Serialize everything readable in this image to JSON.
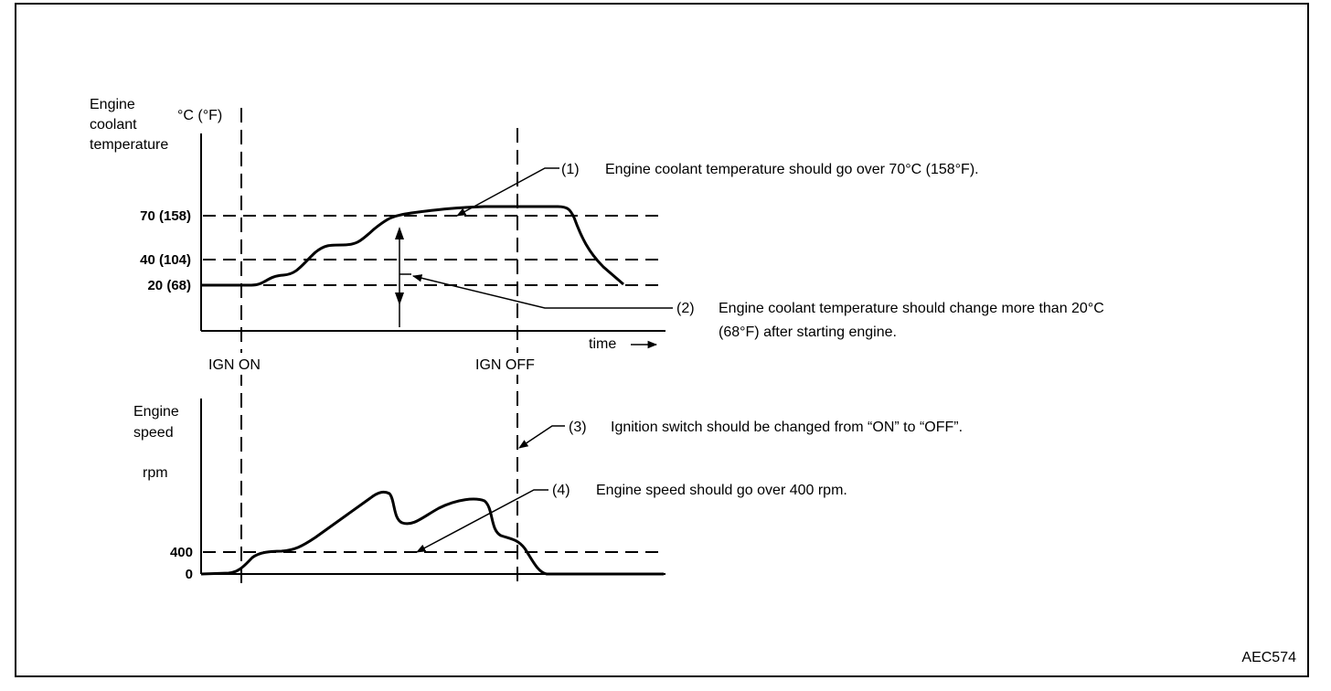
{
  "figure_id": "AEC574",
  "top_chart": {
    "ylabel_line1": "Engine",
    "ylabel_line2": "coolant",
    "ylabel_line3": "temperature",
    "unit": "°C (°F)",
    "ticks": [
      "70 (158)",
      "40 (104)",
      "20 (68)"
    ],
    "xlabel": "time",
    "time_arrow": "—▸"
  },
  "bottom_chart": {
    "ylabel_line1": "Engine",
    "ylabel_line2": "speed",
    "unit": "rpm",
    "ticks": [
      "400",
      "0"
    ]
  },
  "markers": {
    "ign_on": "IGN ON",
    "ign_off": "IGN OFF"
  },
  "notes": {
    "n1_num": "(1)",
    "n1_text": "Engine coolant temperature should go over 70°C (158°F).",
    "n2_num": "(2)",
    "n2_text_line1": "Engine coolant temperature should change more than 20°C",
    "n2_text_line2": "(68°F) after starting engine.",
    "n3_num": "(3)",
    "n3_text": "Ignition switch should be changed from “ON” to “OFF”.",
    "n4_num": "(4)",
    "n4_text": "Engine speed should go over 400 rpm."
  }
}
